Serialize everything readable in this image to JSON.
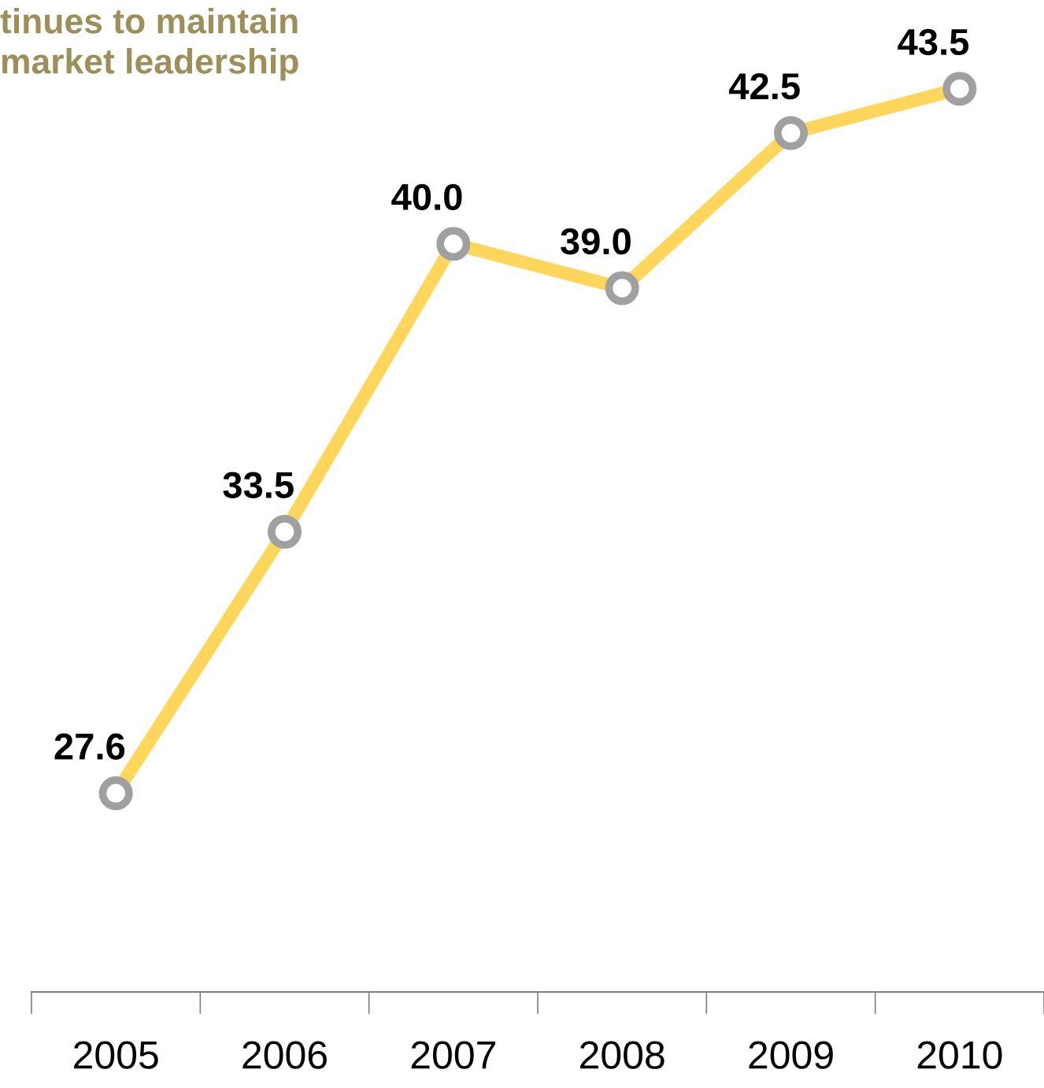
{
  "chart_data": {
    "type": "line",
    "title": "tinues to maintain\nmarket leadership",
    "categories": [
      "2005",
      "2006",
      "2007",
      "2008",
      "2009",
      "2010"
    ],
    "series": [
      {
        "color": "#ffd65c",
        "values": [
          27.6,
          33.5,
          40.0,
          39.0,
          42.5,
          43.5
        ],
        "value_labels": [
          "27.6",
          "33.5",
          "40.0",
          "39.0",
          "42.5",
          "43.5"
        ]
      }
    ],
    "marker": "circle",
    "line_style": "solid",
    "grid": false,
    "legend": false,
    "tick_labels": "x"
  }
}
